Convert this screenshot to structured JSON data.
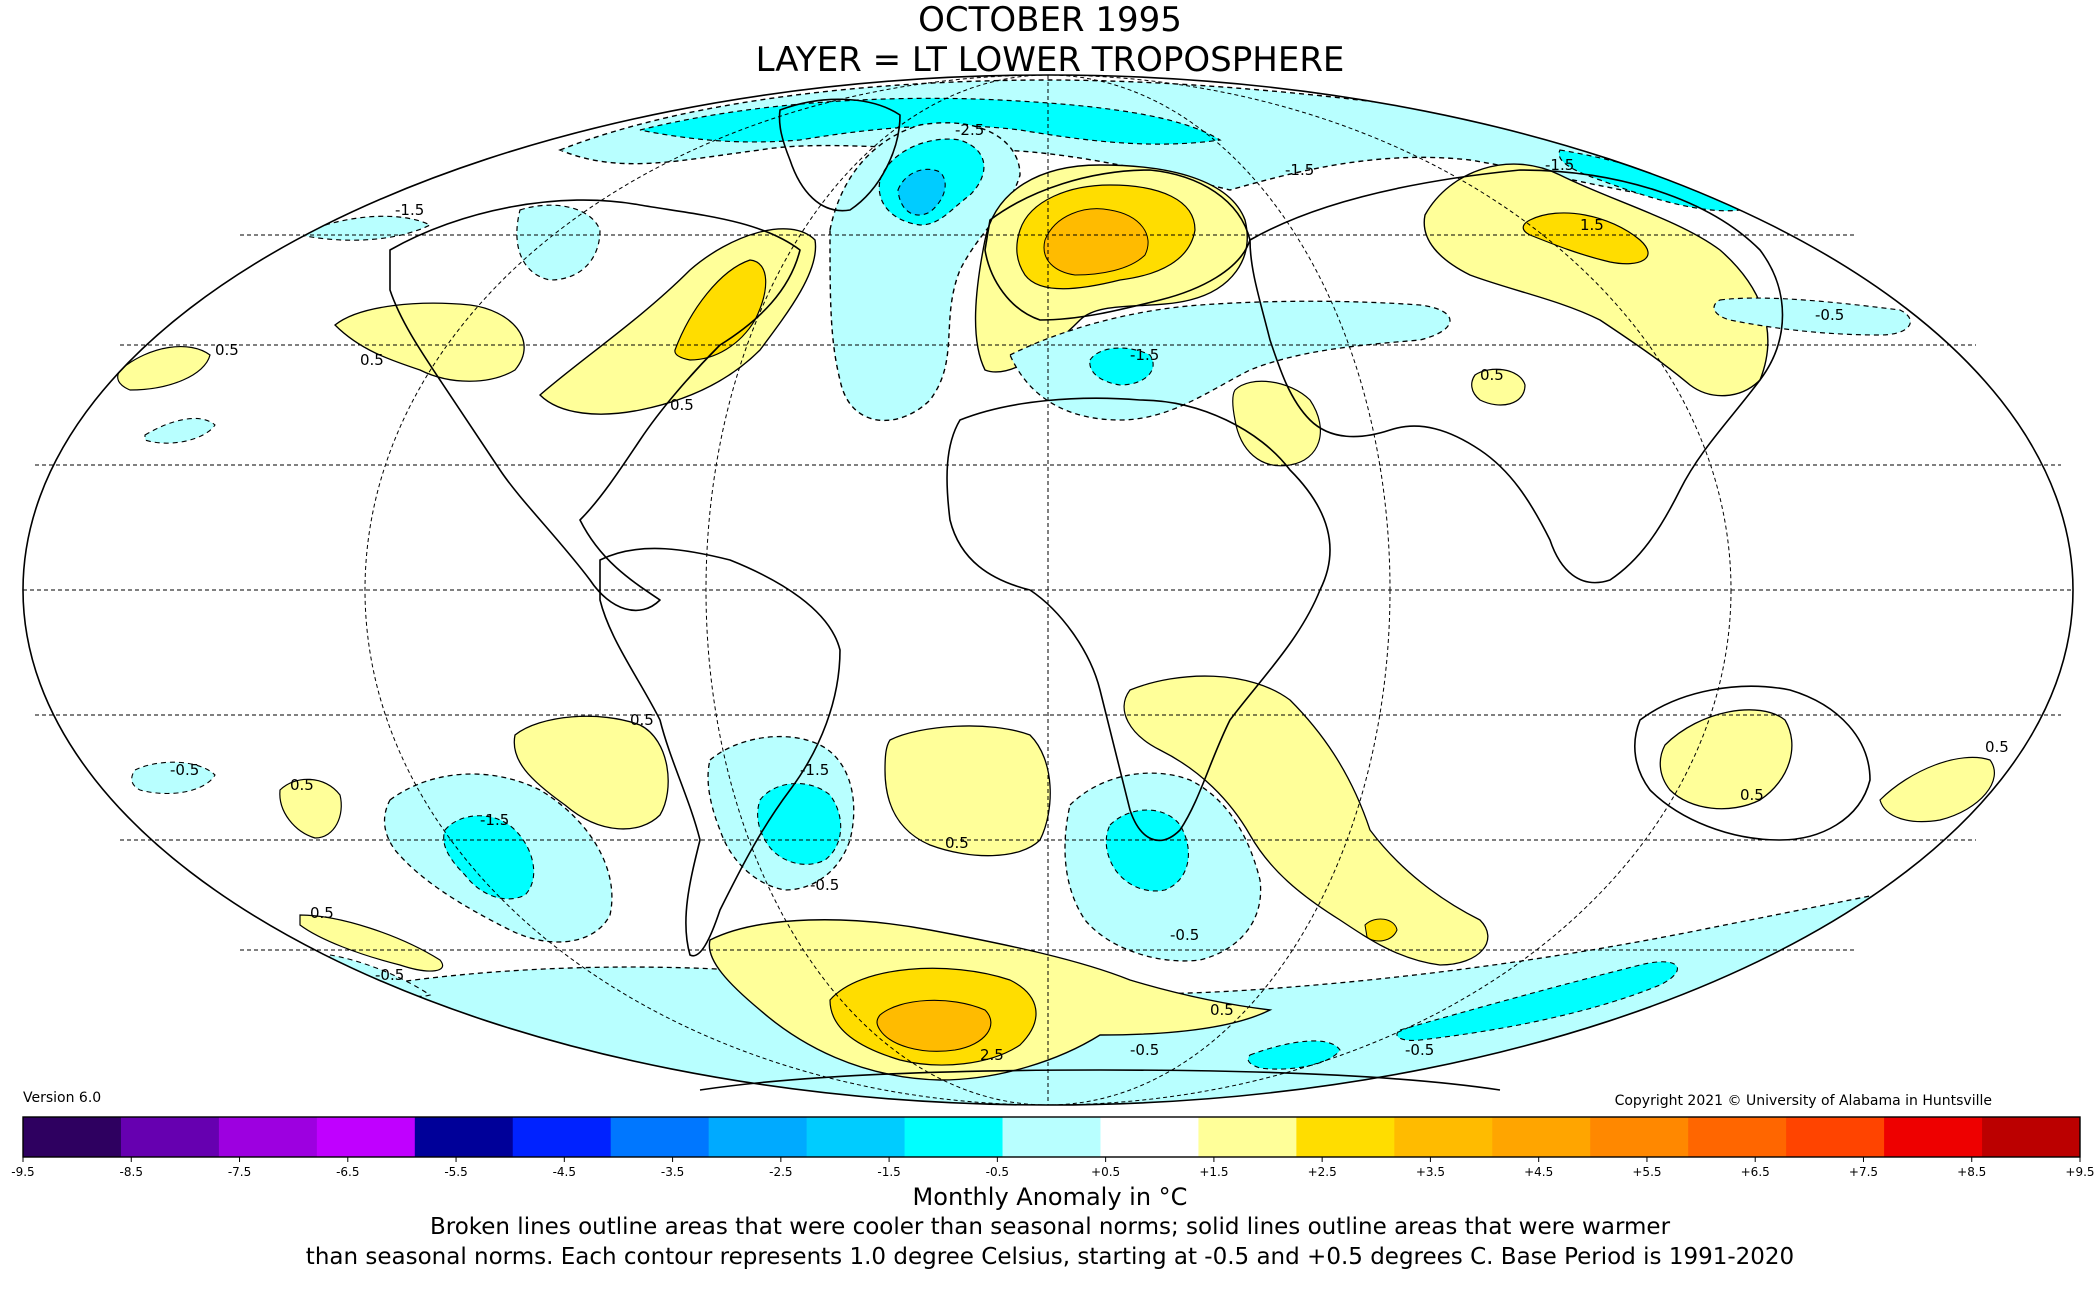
{
  "header": {
    "title": "OCTOBER 1995",
    "subtitle": "LAYER = LT LOWER TROPOSPHERE"
  },
  "version_label": "Version 6.0",
  "copyright": "Copyright 2021 © University of Alabama in Huntsville",
  "legend": {
    "title": "Monthly Anomaly in °C",
    "ticks": [
      "-9.5",
      "-8.5",
      "-7.5",
      "-6.5",
      "-5.5",
      "-4.5",
      "-3.5",
      "-2.5",
      "-1.5",
      "-0.5",
      "+0.5",
      "+1.5",
      "+2.5",
      "+3.5",
      "+4.5",
      "+5.5",
      "+6.5",
      "+7.5",
      "+8.5",
      "+9.5"
    ],
    "colors": [
      "#2e0060",
      "#6600b0",
      "#9d00e0",
      "#c000ff",
      "#000099",
      "#0022ff",
      "#0077ff",
      "#00aaff",
      "#00ccff",
      "#00ffff",
      "#b8ffff",
      "#ffffff",
      "#ffff99",
      "#ffdd00",
      "#ffbb00",
      "#ffa500",
      "#ff8800",
      "#ff6600",
      "#ff4400",
      "#ee0000",
      "#bb0000"
    ]
  },
  "description": {
    "line1": "Broken lines outline areas that were cooler than seasonal norms; solid lines outline areas that were warmer",
    "line2": "than seasonal norms. Each contour represents 1.0 degree Celsius, starting at -0.5 and +0.5 degrees C. Base Period is 1991-2020"
  },
  "contour_labels": [
    "-2.5",
    "-1.5",
    "-0.5",
    "0.5",
    "1.5",
    "2.5"
  ],
  "anomaly_regions": [
    {
      "name": "europe-warm",
      "level": "+1.5 to +2.5"
    },
    {
      "name": "north-atlantic-cold",
      "level": "-1.5 to -2.5"
    },
    {
      "name": "eastern-north-america-warm",
      "level": "+0.5 to +1.5"
    },
    {
      "name": "siberia-warm",
      "level": "+0.5 to +1.5"
    },
    {
      "name": "antarctic-peninsula-warm",
      "level": "+1.5 to +2.5"
    },
    {
      "name": "south-america-cold",
      "level": "-0.5 to -1.5"
    },
    {
      "name": "southern-africa-cold",
      "level": "-0.5 to -1.5"
    },
    {
      "name": "southern-indian-ocean-warm",
      "level": "+0.5 to +1.5"
    },
    {
      "name": "australia-warm",
      "level": "+0.5 to +1.5"
    }
  ]
}
